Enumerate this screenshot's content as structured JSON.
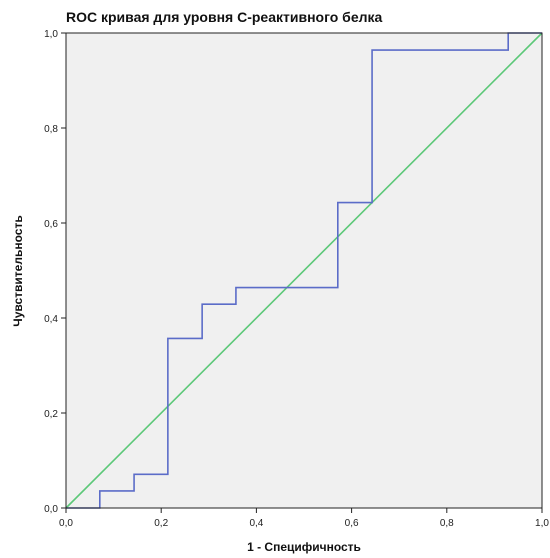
{
  "chart_data": {
    "type": "line",
    "title": "ROC кривая для уровня С-реактивного белка",
    "xlabel": "1 - Специфичность",
    "ylabel": "Чувствительность",
    "xlim": [
      0,
      1
    ],
    "ylim": [
      0,
      1
    ],
    "x_ticks": [
      "0,0",
      "0,2",
      "0,4",
      "0,6",
      "0,8",
      "1,0"
    ],
    "y_ticks": [
      "0,0",
      "0,2",
      "0,4",
      "0,6",
      "0,8",
      "1,0"
    ],
    "grid": false,
    "plot_background": "#f0f0f0",
    "series": [
      {
        "color": "#5b6cc8",
        "x": [
          0.0,
          0.071,
          0.071,
          0.143,
          0.143,
          0.214,
          0.214,
          0.286,
          0.286,
          0.357,
          0.357,
          0.571,
          0.571,
          0.643,
          0.643,
          0.929,
          0.929,
          1.0
        ],
        "y": [
          0.0,
          0.0,
          0.036,
          0.036,
          0.071,
          0.071,
          0.357,
          0.357,
          0.429,
          0.429,
          0.464,
          0.464,
          0.643,
          0.643,
          0.964,
          0.964,
          1.0,
          1.0
        ]
      },
      {
        "color": "#5cc878",
        "x": [
          0,
          1
        ],
        "y": [
          0,
          1
        ]
      }
    ]
  }
}
